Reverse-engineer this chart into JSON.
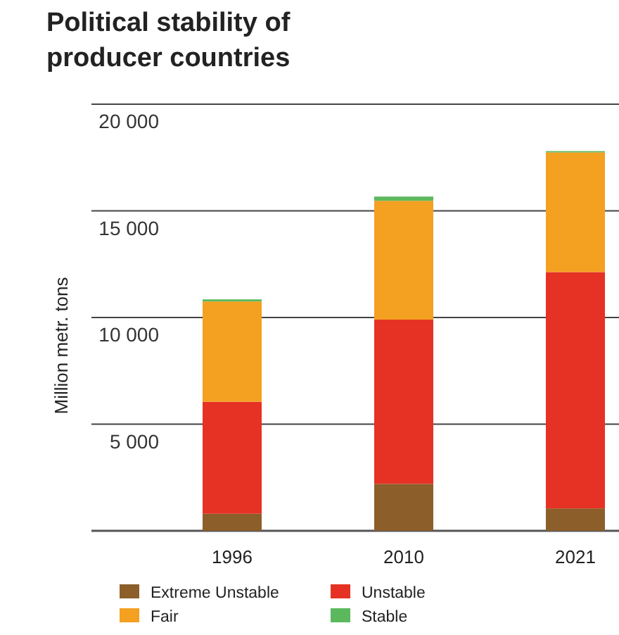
{
  "chart_data": {
    "type": "bar",
    "title": "Political stability of producer countries",
    "ylabel": "Million metr. tons",
    "categories": [
      "1996",
      "2010",
      "2021"
    ],
    "stacked": true,
    "series": [
      {
        "name": "Extreme Unstable",
        "color": "#8b5e2a",
        "values": [
          800,
          2200,
          1050
        ]
      },
      {
        "name": "Unstable",
        "color": "#e53224",
        "values": [
          5250,
          7700,
          11080
        ]
      },
      {
        "name": "Fair",
        "color": "#f4a020",
        "values": [
          4700,
          5570,
          5610
        ]
      },
      {
        "name": "Stable",
        "color": "#5cb85c",
        "values": [
          100,
          200,
          60
        ]
      }
    ],
    "ylim": [
      0,
      20000
    ],
    "yticks": [
      {
        "value": 0,
        "label": null
      },
      {
        "value": 5000,
        "label": "5 000"
      },
      {
        "value": 10000,
        "label": "10 000"
      },
      {
        "value": 15000,
        "label": "15 000"
      },
      {
        "value": 20000,
        "label": "20 000"
      }
    ],
    "grid": "y",
    "legend": "bottom"
  }
}
